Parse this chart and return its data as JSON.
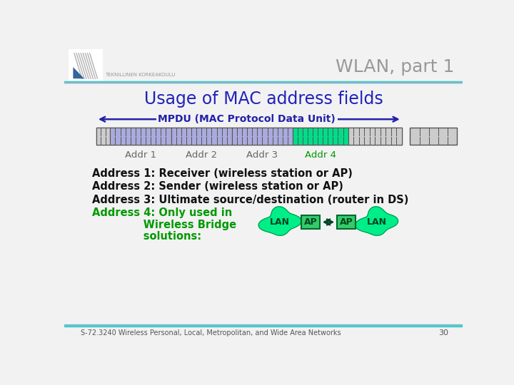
{
  "title": "WLAN, part 1",
  "subtitle": "Usage of MAC address fields",
  "mpdu_label": "MPDU (MAC Protocol Data Unit)",
  "slide_bg": "#f2f2f2",
  "title_color": "#999999",
  "subtitle_color": "#2222bb",
  "mpdu_color": "#2222aa",
  "addr_labels": [
    "Addr 1",
    "Addr 2",
    "Addr 3",
    "Addr 4"
  ],
  "addr_label_color": "#666666",
  "addr4_label_color": "#009900",
  "body_lines": [
    "Address 1: Receiver (wireless station or AP)",
    "Address 2: Sender (wireless station or AP)",
    "Address 3: Ultimate source/destination (router in DS)"
  ],
  "body_color": "#111111",
  "addr4_text": "Address 4: Only used in\n              Wireless Bridge\n              solutions:",
  "addr4_color": "#009900",
  "footer": "S-72.3240 Wireless Personal, Local, Metropolitan, and Wide Area Networks",
  "footer_page": "30",
  "bar_main_color": "#aaaadd",
  "bar_green_color": "#00dd88",
  "bar_gray_color": "#cccccc",
  "bar_border_color": "#555555",
  "cloud_color": "#00ee88",
  "ap_box_color": "#33cc66",
  "ap_text_color": "#004422",
  "lan_text_color": "#004422",
  "arrow_color": "#004422",
  "line_color1": "#44cccc",
  "line_color2": "#aaaacc",
  "inst_text": "TEKNILLINEN KORKEAKOULU"
}
